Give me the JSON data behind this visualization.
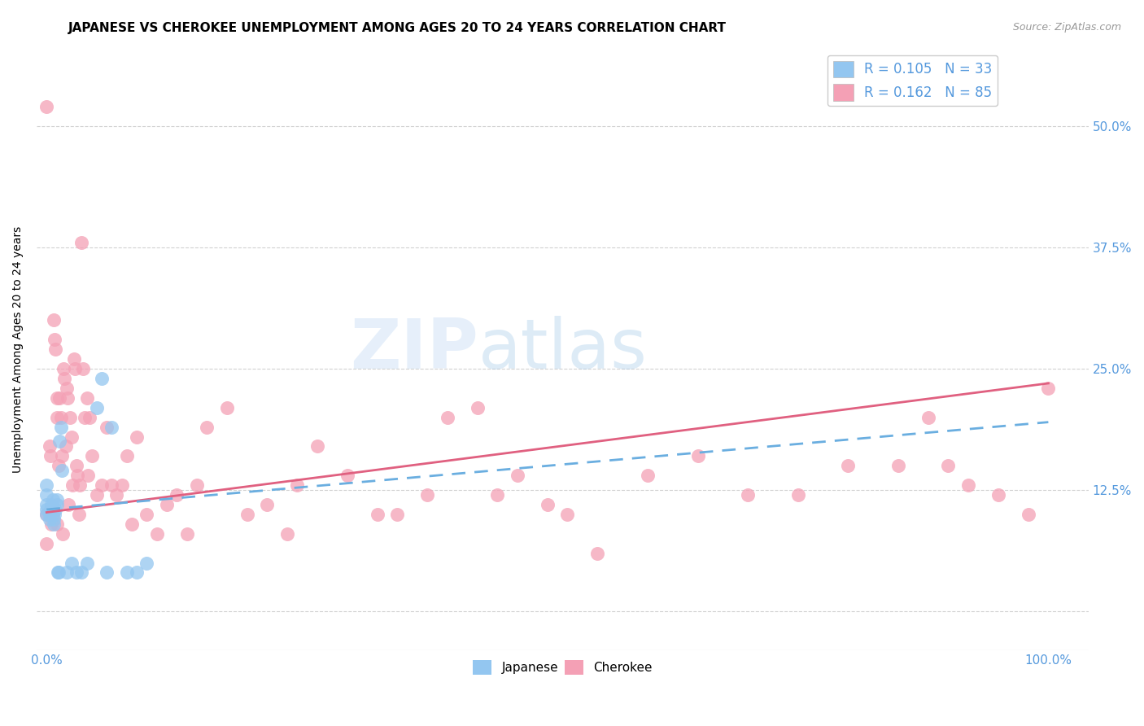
{
  "title": "JAPANESE VS CHEROKEE UNEMPLOYMENT AMONG AGES 20 TO 24 YEARS CORRELATION CHART",
  "source": "Source: ZipAtlas.com",
  "ylabel": "Unemployment Among Ages 20 to 24 years",
  "xlabel": "",
  "xlim": [
    -0.01,
    1.04
  ],
  "ylim": [
    -0.04,
    0.58
  ],
  "xticks": [
    0.0,
    0.25,
    0.5,
    0.75,
    1.0
  ],
  "xtick_labels": [
    "0.0%",
    "",
    "",
    "",
    "100.0%"
  ],
  "yticks": [
    0.0,
    0.125,
    0.25,
    0.375,
    0.5
  ],
  "ytick_labels": [
    "",
    "12.5%",
    "25.0%",
    "37.5%",
    "50.0%"
  ],
  "watermark": "ZIPatlas",
  "japanese_color": "#93c6f0",
  "cherokee_color": "#f4a0b5",
  "japanese_line_color": "#6aaee0",
  "cherokee_line_color": "#e06080",
  "japanese_R": 0.105,
  "japanese_N": 33,
  "cherokee_R": 0.162,
  "cherokee_N": 85,
  "japanese_x": [
    0.0,
    0.0,
    0.0,
    0.0,
    0.0,
    0.003,
    0.003,
    0.004,
    0.005,
    0.006,
    0.007,
    0.007,
    0.008,
    0.009,
    0.01,
    0.01,
    0.011,
    0.012,
    0.013,
    0.014,
    0.015,
    0.02,
    0.025,
    0.03,
    0.035,
    0.04,
    0.05,
    0.055,
    0.06,
    0.065,
    0.08,
    0.09,
    0.1
  ],
  "japanese_y": [
    0.1,
    0.105,
    0.11,
    0.12,
    0.13,
    0.095,
    0.1,
    0.105,
    0.11,
    0.115,
    0.09,
    0.095,
    0.1,
    0.105,
    0.11,
    0.115,
    0.04,
    0.04,
    0.175,
    0.19,
    0.145,
    0.04,
    0.05,
    0.04,
    0.04,
    0.05,
    0.21,
    0.24,
    0.04,
    0.19,
    0.04,
    0.04,
    0.05
  ],
  "cherokee_x": [
    0.0,
    0.0,
    0.0,
    0.003,
    0.004,
    0.005,
    0.006,
    0.007,
    0.008,
    0.009,
    0.01,
    0.01,
    0.01,
    0.012,
    0.013,
    0.014,
    0.015,
    0.016,
    0.017,
    0.018,
    0.019,
    0.02,
    0.021,
    0.022,
    0.023,
    0.025,
    0.026,
    0.027,
    0.028,
    0.03,
    0.031,
    0.032,
    0.033,
    0.035,
    0.036,
    0.038,
    0.04,
    0.041,
    0.043,
    0.045,
    0.05,
    0.055,
    0.06,
    0.065,
    0.07,
    0.075,
    0.08,
    0.085,
    0.09,
    0.1,
    0.11,
    0.12,
    0.13,
    0.14,
    0.15,
    0.16,
    0.18,
    0.2,
    0.22,
    0.24,
    0.25,
    0.27,
    0.3,
    0.33,
    0.35,
    0.38,
    0.4,
    0.43,
    0.45,
    0.47,
    0.5,
    0.52,
    0.55,
    0.6,
    0.65,
    0.7,
    0.75,
    0.8,
    0.85,
    0.88,
    0.9,
    0.92,
    0.95,
    0.98,
    1.0
  ],
  "cherokee_y": [
    0.52,
    0.1,
    0.07,
    0.17,
    0.16,
    0.09,
    0.1,
    0.3,
    0.28,
    0.27,
    0.22,
    0.2,
    0.09,
    0.15,
    0.22,
    0.2,
    0.16,
    0.08,
    0.25,
    0.24,
    0.17,
    0.23,
    0.22,
    0.11,
    0.2,
    0.18,
    0.13,
    0.26,
    0.25,
    0.15,
    0.14,
    0.1,
    0.13,
    0.38,
    0.25,
    0.2,
    0.22,
    0.14,
    0.2,
    0.16,
    0.12,
    0.13,
    0.19,
    0.13,
    0.12,
    0.13,
    0.16,
    0.09,
    0.18,
    0.1,
    0.08,
    0.11,
    0.12,
    0.08,
    0.13,
    0.19,
    0.21,
    0.1,
    0.11,
    0.08,
    0.13,
    0.17,
    0.14,
    0.1,
    0.1,
    0.12,
    0.2,
    0.21,
    0.12,
    0.14,
    0.11,
    0.1,
    0.06,
    0.14,
    0.16,
    0.12,
    0.12,
    0.15,
    0.15,
    0.2,
    0.15,
    0.13,
    0.12,
    0.1,
    0.23
  ],
  "grid_color": "#cccccc",
  "background_color": "#ffffff",
  "title_fontsize": 11,
  "axis_label_fontsize": 10,
  "tick_fontsize": 11,
  "legend_fontsize": 12
}
